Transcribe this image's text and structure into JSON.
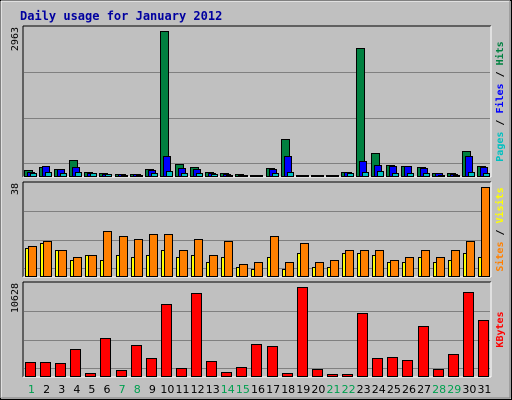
{
  "title": "Daily usage for January 2012",
  "colors": {
    "background": "#C0C0C0",
    "title": "#0000A0",
    "hits": "#008040",
    "files": "#0000FF",
    "pages": "#00C0C0",
    "visits": "#FFFF00",
    "sites": "#FF8000",
    "kbytes": "#FF0000",
    "weekend_day": "#00A050",
    "weekday": "#000000"
  },
  "chart_data": [
    {
      "type": "bar",
      "panel": "hits-files-pages",
      "categories": [
        "1",
        "2",
        "3",
        "4",
        "5",
        "6",
        "7",
        "8",
        "9",
        "10",
        "11",
        "12",
        "13",
        "14",
        "15",
        "16",
        "17",
        "18",
        "19",
        "20",
        "21",
        "22",
        "23",
        "24",
        "25",
        "26",
        "27",
        "28",
        "29",
        "30",
        "31"
      ],
      "weekend_days": [
        "1",
        "7",
        "8",
        "14",
        "15",
        "21",
        "22",
        "28",
        "29"
      ],
      "ymax_label": "2963",
      "ylim": [
        0,
        2963
      ],
      "grid": true,
      "axis_title": [
        {
          "text": "Pages",
          "color": "#00C0C0"
        },
        {
          "text": " / ",
          "color": "#000000"
        },
        {
          "text": "Files",
          "color": "#0000FF"
        },
        {
          "text": " / ",
          "color": "#000000"
        },
        {
          "text": "Hits",
          "color": "#008040"
        }
      ],
      "series": [
        {
          "name": "Hits",
          "color": "#008040",
          "values": [
            120,
            180,
            140,
            320,
            90,
            60,
            40,
            50,
            150,
            2963,
            250,
            180,
            80,
            60,
            40,
            30,
            170,
            760,
            20,
            20,
            10,
            90,
            2620,
            460,
            230,
            210,
            190,
            70,
            60,
            520,
            200
          ]
        },
        {
          "name": "Files",
          "color": "#0000FF",
          "values": [
            90,
            200,
            140,
            180,
            70,
            50,
            40,
            50,
            120,
            400,
            160,
            150,
            70,
            50,
            30,
            20,
            150,
            400,
            20,
            20,
            10,
            80,
            300,
            230,
            200,
            200,
            170,
            60,
            50,
            400,
            180
          ]
        },
        {
          "name": "Pages",
          "color": "#00C0C0",
          "values": [
            60,
            80,
            60,
            90,
            60,
            40,
            30,
            30,
            60,
            100,
            70,
            60,
            40,
            30,
            20,
            15,
            60,
            90,
            10,
            10,
            5,
            60,
            90,
            100,
            60,
            70,
            60,
            30,
            30,
            90,
            60
          ]
        }
      ]
    },
    {
      "type": "bar",
      "panel": "visits-sites",
      "categories": [
        "1",
        "2",
        "3",
        "4",
        "5",
        "6",
        "7",
        "8",
        "9",
        "10",
        "11",
        "12",
        "13",
        "14",
        "15",
        "16",
        "17",
        "18",
        "19",
        "20",
        "21",
        "22",
        "23",
        "24",
        "25",
        "26",
        "27",
        "28",
        "29",
        "30",
        "31"
      ],
      "ymax_label": "38",
      "ylim": [
        0,
        38
      ],
      "grid": true,
      "axis_title": [
        {
          "text": "Sites",
          "color": "#FF8000"
        },
        {
          "text": " / ",
          "color": "#000000"
        },
        {
          "text": "Visits",
          "color": "#FFFF00"
        }
      ],
      "series": [
        {
          "name": "Visits",
          "color": "#FFFF00",
          "values": [
            12,
            14,
            11,
            7,
            9,
            7,
            9,
            8,
            9,
            11,
            8,
            9,
            6,
            8,
            4,
            3,
            8,
            3,
            10,
            4,
            4,
            10,
            10,
            9,
            6,
            6,
            8,
            6,
            7,
            10,
            8
          ]
        },
        {
          "name": "Sites",
          "color": "#FF8000",
          "values": [
            13,
            15,
            11,
            8,
            9,
            19,
            17,
            16,
            18,
            18,
            11,
            16,
            9,
            15,
            5,
            6,
            17,
            6,
            14,
            6,
            7,
            11,
            11,
            11,
            7,
            8,
            11,
            8,
            11,
            15,
            38
          ]
        }
      ]
    },
    {
      "type": "bar",
      "panel": "kbytes",
      "categories": [
        "1",
        "2",
        "3",
        "4",
        "5",
        "6",
        "7",
        "8",
        "9",
        "10",
        "11",
        "12",
        "13",
        "14",
        "15",
        "16",
        "17",
        "18",
        "19",
        "20",
        "21",
        "22",
        "23",
        "24",
        "25",
        "26",
        "27",
        "28",
        "29",
        "30",
        "31"
      ],
      "ymax_label": "10628",
      "ylim": [
        0,
        10628
      ],
      "grid": true,
      "axis_title": [
        {
          "text": "KBytes",
          "color": "#FF0000"
        }
      ],
      "series": [
        {
          "name": "KBytes",
          "color": "#FF0000",
          "values": [
            1700,
            1700,
            1500,
            3200,
            300,
            4500,
            700,
            3700,
            2200,
            8600,
            1000,
            9900,
            1800,
            500,
            1100,
            3800,
            3600,
            300,
            10628,
            800,
            250,
            250,
            7500,
            2200,
            2300,
            1900,
            6000,
            800,
            2600,
            10000,
            6700
          ]
        }
      ]
    }
  ]
}
